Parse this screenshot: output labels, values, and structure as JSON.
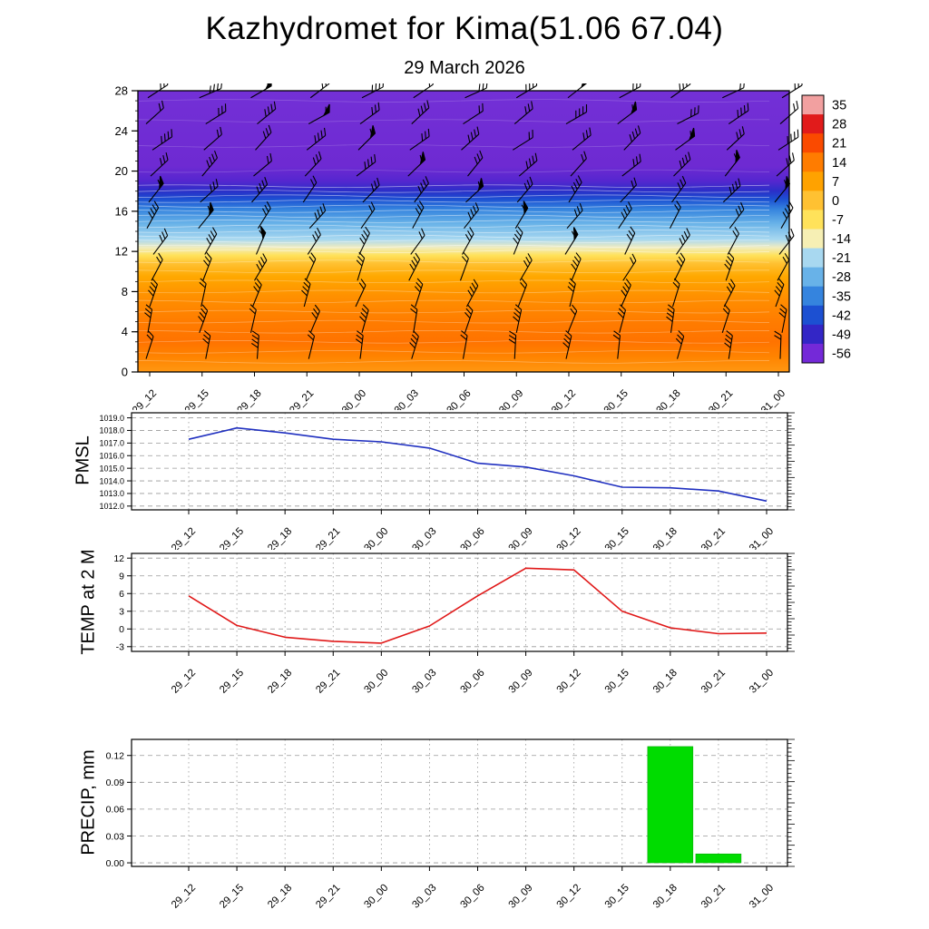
{
  "header": {
    "title": "Kazhydromet for Kima(51.06 67.04)",
    "subtitle": "29 March 2026"
  },
  "time_labels": [
    "29_12",
    "29_15",
    "29_18",
    "29_21",
    "30_00",
    "30_03",
    "30_06",
    "30_09",
    "30_12",
    "30_15",
    "30_18",
    "30_21",
    "31_00"
  ],
  "chart_data": [
    {
      "type": "heatmap",
      "name": "temperature-wind-height-cross-section",
      "x_labels": [
        "29_12",
        "29_15",
        "29_18",
        "29_21",
        "30_00",
        "30_03",
        "30_06",
        "30_09",
        "30_12",
        "30_15",
        "30_18",
        "30_21",
        "31_00"
      ],
      "ylim": [
        0,
        28
      ],
      "y_ticks": [
        0,
        4,
        8,
        12,
        16,
        20,
        24,
        28
      ],
      "grid": false,
      "colorbar": {
        "ticks": [
          35,
          28,
          21,
          14,
          7,
          0,
          -7,
          -14,
          -21,
          -28,
          -35,
          -42,
          -49,
          -56
        ],
        "colors": [
          "#f2a0a0",
          "#e11b1b",
          "#fa4a00",
          "#ff7c00",
          "#ffa200",
          "#ffc132",
          "#ffe25a",
          "#f6efb4",
          "#a8d8f0",
          "#68b2e8",
          "#3584de",
          "#1c50d2",
          "#3326c6",
          "#7429d8"
        ]
      },
      "profile": [
        {
          "h": 0.0,
          "c": "#ff9712"
        },
        {
          "h": 1.5,
          "c": "#ff8400"
        },
        {
          "h": 3.0,
          "c": "#ff7300"
        },
        {
          "h": 5.0,
          "c": "#ff7c00"
        },
        {
          "h": 7.5,
          "c": "#ff9000"
        },
        {
          "h": 9.5,
          "c": "#ffa800"
        },
        {
          "h": 10.8,
          "c": "#ffc132"
        },
        {
          "h": 11.6,
          "c": "#ffe25a"
        },
        {
          "h": 12.4,
          "c": "#f0ecc0"
        },
        {
          "h": 13.2,
          "c": "#a8d8f0"
        },
        {
          "h": 14.8,
          "c": "#68b2e8"
        },
        {
          "h": 16.2,
          "c": "#3584de"
        },
        {
          "h": 17.2,
          "c": "#1c50d2"
        },
        {
          "h": 18.0,
          "c": "#2a2fc8"
        },
        {
          "h": 19.0,
          "c": "#5526cf"
        },
        {
          "h": 20.5,
          "c": "#6e2ad2"
        },
        {
          "h": 28.0,
          "c": "#7330d6"
        }
      ],
      "contours": [
        {
          "heights": [
            1,
            2,
            3,
            4,
            5,
            6,
            7,
            8,
            9,
            10,
            11
          ],
          "opacity": 0.35
        },
        {
          "heights": [
            12,
            12.5,
            13,
            13.5,
            14,
            14.5,
            15,
            15.5,
            16,
            16.5,
            17,
            17.5,
            18,
            18.5
          ],
          "opacity": 0.55
        },
        {
          "heights": [
            20,
            22.5,
            25,
            27
          ],
          "opacity": 0.22
        }
      ],
      "wind_barb_grid": {
        "columns": 13,
        "rows": 11,
        "h_min": 1.3,
        "h_step": 2.6,
        "color": "#000000"
      }
    },
    {
      "type": "line",
      "name": "pmsl",
      "label": "PMSL",
      "color": "#2030c0",
      "x": [
        "29_12",
        "29_15",
        "29_18",
        "29_21",
        "30_00",
        "30_03",
        "30_06",
        "30_09",
        "30_12",
        "30_15",
        "30_18",
        "30_21",
        "31_00"
      ],
      "values": [
        1017.3,
        1018.2,
        1017.8,
        1017.3,
        1017.1,
        1016.6,
        1015.4,
        1015.1,
        1014.4,
        1013.5,
        1013.45,
        1013.2,
        1012.4
      ],
      "ylim": [
        1011.7,
        1019.4
      ],
      "y_ticks": [
        1019.0,
        1018.0,
        1017.0,
        1016.0,
        1015.0,
        1014.0,
        1013.0,
        1012.0
      ],
      "grid": true
    },
    {
      "type": "line",
      "name": "temp-2m",
      "label": "TEMP at 2 M",
      "color": "#e01818",
      "x": [
        "29_12",
        "29_15",
        "29_18",
        "29_21",
        "30_00",
        "30_03",
        "30_06",
        "30_09",
        "30_12",
        "30_15",
        "30_18",
        "30_21",
        "31_00"
      ],
      "values": [
        5.6,
        0.6,
        -1.4,
        -2.1,
        -2.4,
        0.5,
        5.6,
        10.3,
        10.0,
        3.0,
        0.2,
        -0.8,
        -0.7
      ],
      "ylim": [
        -3.8,
        12.8
      ],
      "y_ticks": [
        12,
        9,
        6,
        3,
        0,
        -3
      ],
      "grid": true
    },
    {
      "type": "bar",
      "name": "precip",
      "label": "PRECIP, mm",
      "color": "#00dc00",
      "x": [
        "29_12",
        "29_15",
        "29_18",
        "29_21",
        "30_00",
        "30_03",
        "30_06",
        "30_09",
        "30_12",
        "30_15",
        "30_18",
        "30_21",
        "31_00"
      ],
      "values": [
        0,
        0,
        0,
        0,
        0,
        0,
        0,
        0,
        0,
        0,
        0.13,
        0.01,
        0
      ],
      "ylim": [
        -0.004,
        0.138
      ],
      "y_ticks": [
        0.12,
        0.09,
        0.06,
        0.03,
        0.0
      ],
      "grid": true
    }
  ]
}
